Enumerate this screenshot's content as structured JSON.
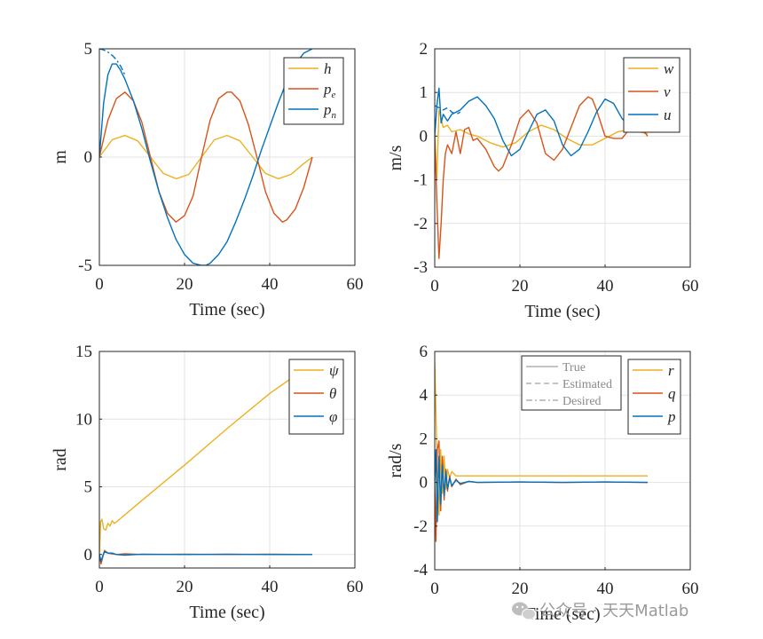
{
  "colors": {
    "blue": "#0072BD",
    "orange": "#D95319",
    "yellow": "#EDB120"
  },
  "watermark": {
    "text": "公众号 · 天天Matlab",
    "icon": "wechat-icon"
  },
  "style_legend": [
    {
      "label": "True",
      "dash": "solid"
    },
    {
      "label": "Estimated",
      "dash": "dashed"
    },
    {
      "label": "Desired",
      "dash": "dashdot"
    }
  ],
  "chart_data": [
    {
      "id": "position",
      "type": "line",
      "xlabel": "Time (sec)",
      "ylabel": "m",
      "xlim": [
        0,
        60
      ],
      "ylim": [
        -5,
        5
      ],
      "xticks": [
        "0",
        "20",
        "40",
        "60"
      ],
      "yticks": [
        "-5",
        "0",
        "5"
      ],
      "ytick_values": [
        -5,
        0,
        5
      ],
      "grid": true,
      "legend_position": "top-right",
      "series": [
        {
          "name": "h",
          "sub": "",
          "color": "yellow",
          "x": [
            0,
            3,
            6,
            9,
            12,
            15,
            18,
            21,
            24,
            27,
            30,
            33,
            36,
            39,
            42,
            45,
            48,
            50
          ],
          "values": [
            0,
            0.8,
            1,
            0.75,
            0,
            -0.75,
            -1,
            -0.8,
            0,
            0.8,
            1,
            0.75,
            0,
            -0.75,
            -1,
            -0.8,
            -0.3,
            0
          ]
        },
        {
          "name": "p",
          "sub": "e",
          "color": "orange",
          "x": [
            0,
            2,
            4,
            6,
            8,
            10,
            12,
            14,
            16,
            18,
            20,
            22,
            24,
            26,
            28,
            30,
            31,
            33,
            35,
            37,
            39,
            41,
            43,
            44,
            46,
            48,
            50
          ],
          "values": [
            0,
            1.7,
            2.7,
            3,
            2.6,
            1.6,
            0,
            -1.6,
            -2.6,
            -3,
            -2.7,
            -1.8,
            0,
            1.7,
            2.7,
            3,
            3,
            2.6,
            1.5,
            0,
            -1.6,
            -2.6,
            -3,
            -2.9,
            -2.4,
            -1.4,
            0
          ]
        },
        {
          "name": "p",
          "sub": "n",
          "color": "blue",
          "x": [
            0,
            1,
            2,
            3,
            4,
            5,
            6,
            8,
            10,
            12,
            14,
            16,
            18,
            20,
            22,
            24,
            25,
            26,
            28,
            30,
            32,
            34,
            36,
            38,
            40,
            42,
            44,
            46,
            48,
            50
          ],
          "values": [
            0,
            2.5,
            3.8,
            4.3,
            4.3,
            4,
            3.6,
            2.6,
            1.3,
            -0.2,
            -1.6,
            -2.8,
            -3.8,
            -4.5,
            -4.9,
            -5,
            -5,
            -4.9,
            -4.5,
            -3.9,
            -3,
            -2,
            -0.9,
            0.3,
            1.4,
            2.5,
            3.5,
            4.3,
            4.8,
            5
          ]
        },
        {
          "name": "p_n desired",
          "sub": "",
          "color": "blue",
          "dash": "dashdot",
          "legend": false,
          "x": [
            0,
            1,
            2,
            3,
            4,
            5,
            6
          ],
          "values": [
            5,
            4.95,
            4.85,
            4.7,
            4.5,
            4.2,
            3.8
          ]
        }
      ]
    },
    {
      "id": "velocity",
      "type": "line",
      "xlabel": "Time (sec)",
      "ylabel": "m/s",
      "xlim": [
        0,
        60
      ],
      "ylim": [
        -3,
        2
      ],
      "xticks": [
        "0",
        "20",
        "40",
        "60"
      ],
      "yticks": [
        "-3",
        "-2",
        "-1",
        "0",
        "1",
        "2"
      ],
      "ytick_values": [
        -3,
        -2,
        -1,
        0,
        1,
        2
      ],
      "grid": true,
      "legend_position": "top-right",
      "series": [
        {
          "name": "w",
          "sub": "",
          "color": "yellow",
          "x": [
            0,
            0.5,
            1,
            2,
            3,
            4,
            6,
            8,
            10,
            13,
            16,
            19,
            22,
            25,
            28,
            31,
            34,
            37,
            40,
            43,
            46,
            48,
            50
          ],
          "values": [
            0,
            -1,
            0.6,
            0.2,
            0.25,
            0.1,
            0.15,
            0.05,
            0,
            -0.15,
            -0.25,
            -0.15,
            0.1,
            0.25,
            0.15,
            -0.05,
            -0.2,
            -0.2,
            -0.05,
            0.1,
            0.15,
            0.1,
            0.05
          ]
        },
        {
          "name": "v",
          "sub": "",
          "color": "orange",
          "x": [
            0,
            0.5,
            1,
            1.5,
            2,
            2.5,
            3,
            4,
            5,
            6,
            7,
            8,
            9,
            10,
            12,
            14,
            15,
            16,
            18,
            20,
            22,
            24,
            26,
            28,
            30,
            32,
            34,
            36,
            37,
            38,
            40,
            42,
            44,
            46,
            48,
            50
          ],
          "values": [
            0,
            -1.5,
            -2.8,
            -2,
            -1,
            -0.4,
            -0.2,
            -0.4,
            0.1,
            -0.4,
            0.15,
            0.2,
            -0.1,
            -0.05,
            -0.3,
            -0.7,
            -0.8,
            -0.7,
            -0.2,
            0.4,
            0.6,
            0.3,
            -0.4,
            -0.55,
            -0.3,
            0.2,
            0.7,
            0.9,
            0.85,
            0.6,
            0,
            -0.05,
            -0.05,
            0.2,
            0.25,
            0
          ]
        },
        {
          "name": "u",
          "sub": "",
          "color": "blue",
          "x": [
            0,
            0.5,
            1,
            1.5,
            2,
            3,
            4,
            6,
            8,
            10,
            12,
            14,
            16,
            18,
            20,
            22,
            24,
            26,
            28,
            30,
            32,
            34,
            36,
            38,
            40,
            42,
            44,
            46,
            48,
            50
          ],
          "values": [
            0,
            0.7,
            1.1,
            0.3,
            0.5,
            0.35,
            0.5,
            0.6,
            0.8,
            0.9,
            0.7,
            0.4,
            -0.1,
            -0.45,
            -0.3,
            0.1,
            0.5,
            0.6,
            0.35,
            -0.2,
            -0.45,
            -0.3,
            0.1,
            0.55,
            0.85,
            0.75,
            0.4,
            0.2,
            0.3,
            0.2
          ]
        },
        {
          "name": "u estimated",
          "sub": "",
          "color": "blue",
          "dash": "dashed",
          "legend": false,
          "x": [
            0,
            1,
            2,
            3,
            4,
            5,
            6
          ],
          "values": [
            0.7,
            0.65,
            0.6,
            0.65,
            0.55,
            0.5,
            0.55
          ]
        }
      ]
    },
    {
      "id": "attitude",
      "type": "line",
      "xlabel": "Time (sec)",
      "ylabel": "rad",
      "xlim": [
        0,
        60
      ],
      "ylim": [
        -1,
        15
      ],
      "xticks": [
        "0",
        "20",
        "40",
        "60"
      ],
      "yticks": [
        "0",
        "5",
        "10",
        "15"
      ],
      "ytick_values": [
        0,
        5,
        10,
        15
      ],
      "grid": true,
      "legend_position": "top-right",
      "series": [
        {
          "name": "ψ",
          "sub": "",
          "color": "yellow",
          "x": [
            0,
            0.3,
            0.6,
            1,
            1.5,
            2,
            2.5,
            3,
            3.5,
            4,
            10,
            20,
            30,
            40,
            45
          ],
          "values": [
            0,
            2.4,
            2.6,
            1.9,
            1.8,
            2.3,
            2.1,
            2.5,
            2.3,
            2.4,
            4.0,
            6.6,
            9.3,
            11.9,
            13.0
          ]
        },
        {
          "name": "θ",
          "sub": "",
          "color": "orange",
          "x": [
            0,
            0.4,
            0.8,
            1.2,
            2,
            3,
            4,
            6,
            10,
            20,
            30,
            40,
            50
          ],
          "values": [
            0,
            -0.7,
            -0.2,
            0.3,
            0.1,
            0.05,
            0,
            0.05,
            0,
            0.02,
            0,
            0.02,
            0
          ]
        },
        {
          "name": "φ",
          "sub": "",
          "color": "blue",
          "x": [
            0,
            0.4,
            0.8,
            1.2,
            2,
            3,
            4,
            6,
            10,
            20,
            30,
            40,
            50
          ],
          "values": [
            0,
            -0.5,
            -0.1,
            0.2,
            0.1,
            0.1,
            0,
            -0.05,
            0.02,
            0,
            0.02,
            0,
            0
          ]
        }
      ]
    },
    {
      "id": "rates",
      "type": "line",
      "xlabel": "Time (sec)",
      "ylabel": "rad/s",
      "xlim": [
        0,
        60
      ],
      "ylim": [
        -4,
        6
      ],
      "xticks": [
        "0",
        "20",
        "40",
        "60"
      ],
      "yticks": [
        "-4",
        "-2",
        "0",
        "2",
        "4",
        "6"
      ],
      "ytick_values": [
        -4,
        -2,
        0,
        2,
        4,
        6
      ],
      "grid": true,
      "legend_position": "top-right",
      "series": [
        {
          "name": "r",
          "sub": "",
          "color": "yellow",
          "x": [
            0,
            0.3,
            0.6,
            1,
            1.4,
            1.8,
            2.2,
            2.6,
            3,
            3.5,
            4,
            5,
            6,
            10,
            20,
            30,
            40,
            50
          ],
          "values": [
            5.5,
            3.2,
            0.5,
            -1.5,
            1.5,
            -0.5,
            1.2,
            -0.3,
            0.6,
            0.2,
            0.5,
            0.3,
            0.3,
            0.3,
            0.3,
            0.3,
            0.3,
            0.3
          ]
        },
        {
          "name": "q",
          "sub": "",
          "color": "orange",
          "x": [
            0,
            0.3,
            0.6,
            1,
            1.4,
            1.8,
            2.2,
            2.6,
            3,
            3.5,
            4,
            5,
            6,
            8,
            10,
            20,
            30,
            40,
            50
          ],
          "values": [
            0,
            -2.7,
            1.5,
            1.9,
            -1.3,
            1.2,
            -0.8,
            0.6,
            -0.4,
            0.3,
            -0.2,
            0.15,
            -0.1,
            0.05,
            0,
            0.02,
            0,
            0.02,
            0
          ]
        },
        {
          "name": "p",
          "sub": "",
          "color": "blue",
          "x": [
            0,
            0.3,
            0.6,
            1,
            1.4,
            1.8,
            2.2,
            2.6,
            3,
            3.5,
            4,
            5,
            6,
            8,
            10,
            20,
            30,
            40,
            50
          ],
          "values": [
            0,
            1.5,
            -1.8,
            1.2,
            -1.0,
            0.8,
            -0.6,
            0.5,
            -0.3,
            0.2,
            -0.15,
            0.1,
            -0.05,
            0.05,
            0,
            0.02,
            0,
            0.02,
            0
          ]
        }
      ]
    }
  ]
}
